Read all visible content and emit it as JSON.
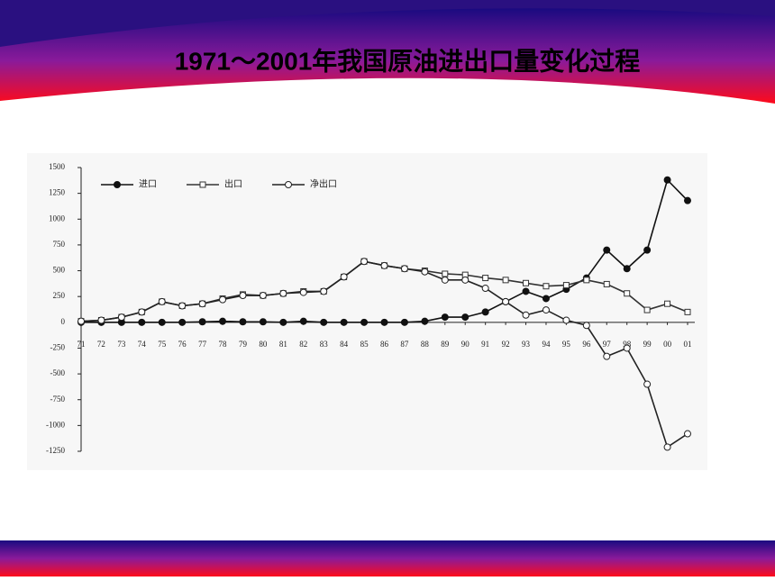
{
  "chart_data": {
    "type": "line",
    "title": "1971～2001年我国原油进出口量变化过程",
    "categories": [
      "71",
      "72",
      "73",
      "74",
      "75",
      "76",
      "77",
      "78",
      "79",
      "80",
      "81",
      "82",
      "83",
      "84",
      "85",
      "86",
      "87",
      "88",
      "89",
      "90",
      "91",
      "92",
      "93",
      "94",
      "95",
      "96",
      "97",
      "98",
      "99",
      "00",
      "01"
    ],
    "series": [
      {
        "name": "进口",
        "color": "#111111",
        "marker": "filled-circle",
        "values": [
          0,
          0,
          0,
          0,
          0,
          0,
          5,
          10,
          5,
          5,
          0,
          10,
          0,
          0,
          0,
          0,
          0,
          10,
          50,
          50,
          100,
          200,
          300,
          230,
          320,
          430,
          700,
          520,
          700,
          1380,
          1180
        ]
      },
      {
        "name": "出口",
        "color": "#333333",
        "marker": "square",
        "values": [
          10,
          20,
          50,
          100,
          200,
          160,
          180,
          230,
          270,
          260,
          280,
          300,
          300,
          440,
          590,
          550,
          520,
          500,
          470,
          460,
          430,
          410,
          380,
          350,
          360,
          410,
          370,
          280,
          120,
          180,
          100
        ]
      },
      {
        "name": "净出口",
        "color": "#222222",
        "marker": "circle",
        "values": [
          10,
          20,
          50,
          100,
          200,
          160,
          180,
          220,
          260,
          260,
          280,
          290,
          300,
          440,
          590,
          550,
          520,
          490,
          410,
          410,
          330,
          200,
          70,
          120,
          20,
          -30,
          -330,
          -250,
          -600,
          -1210,
          -1080
        ]
      }
    ],
    "ylim": [
      -1250,
      1500
    ],
    "yticks": [
      -1250,
      -1000,
      -750,
      -500,
      -250,
      0,
      250,
      500,
      750,
      1000,
      1250,
      1500
    ],
    "legend": "top-left"
  }
}
